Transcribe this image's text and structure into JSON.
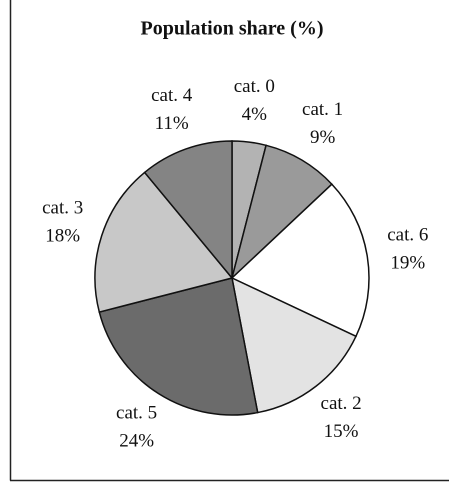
{
  "chart_data": {
    "type": "pie",
    "title": "Population share (%)",
    "categories": [
      "cat. 0",
      "cat. 1",
      "cat. 6",
      "cat. 2",
      "cat. 5",
      "cat. 3",
      "cat. 4"
    ],
    "values": [
      4,
      9,
      19,
      15,
      24,
      18,
      11
    ],
    "value_labels": [
      "4%",
      "9%",
      "19%",
      "15%",
      "24%",
      "18%",
      "11%"
    ],
    "colors": [
      "#b3b3b3",
      "#9a9a9a",
      "#ffffff",
      "#e3e3e3",
      "#6b6b6b",
      "#c8c8c8",
      "#848484"
    ]
  }
}
